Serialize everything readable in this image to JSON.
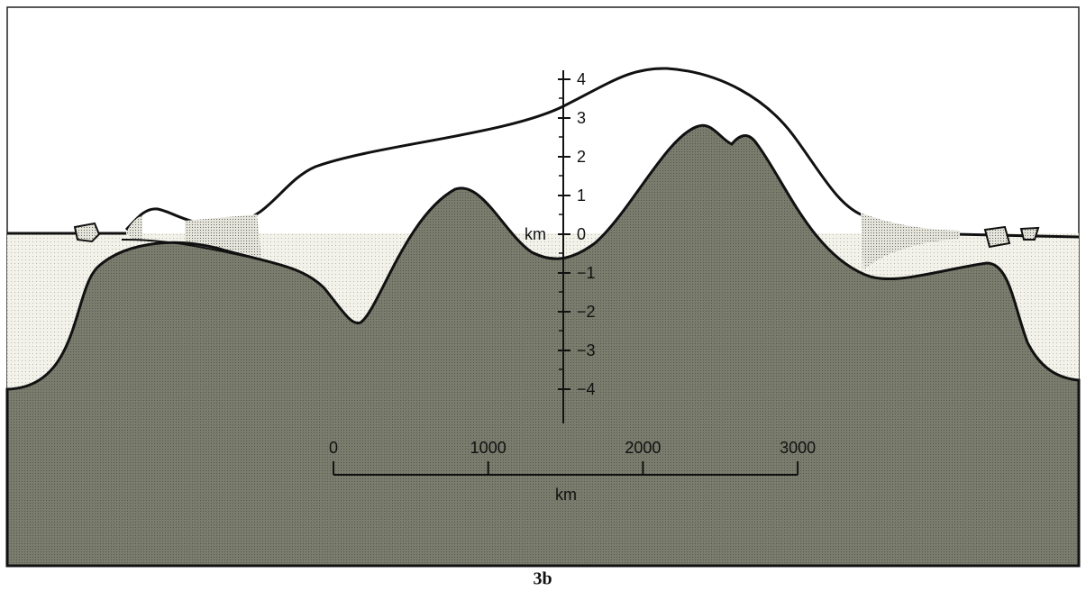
{
  "vertical_scale": {
    "unit": "km",
    "ticks": [
      "4",
      "3",
      "2",
      "1",
      "0",
      "−1",
      "−2",
      "−3",
      "−4"
    ]
  },
  "horizontal_scale": {
    "unit": "km",
    "ticks": [
      "0",
      "1000",
      "2000",
      "3000"
    ]
  },
  "caption": "3b"
}
